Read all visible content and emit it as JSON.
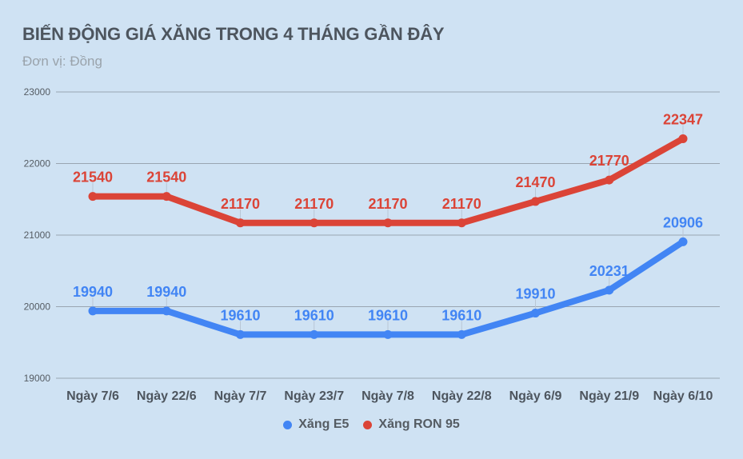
{
  "header": {
    "title": "BIẾN ĐỘNG GIÁ XĂNG TRONG 4 THÁNG GẦN ĐÂY",
    "subtitle": "Đơn vị: Đồng"
  },
  "legend": [
    {
      "label": "Xăng E5",
      "color": "#4285f4",
      "icon": "circle-dot"
    },
    {
      "label": "Xăng RON 95",
      "color": "#db4437",
      "icon": "circle-dot"
    }
  ],
  "chart_data": {
    "type": "line",
    "title": "BIẾN ĐỘNG GIÁ XĂNG TRONG 4 THÁNG GẦN ĐÂY",
    "subtitle": "Đơn vị: Đồng",
    "xlabel": "",
    "ylabel": "",
    "categories": [
      "Ngày 7/6",
      "Ngày 22/6",
      "Ngày 7/7",
      "Ngày 23/7",
      "Ngày 7/8",
      "Ngày 22/8",
      "Ngày 6/9",
      "Ngày 21/9",
      "Ngày 6/10"
    ],
    "series": [
      {
        "name": "Xăng E5",
        "color": "#4285f4",
        "values": [
          19940,
          19940,
          19610,
          19610,
          19610,
          19610,
          19910,
          20231,
          20906
        ]
      },
      {
        "name": "Xăng RON 95",
        "color": "#db4437",
        "values": [
          21540,
          21540,
          21170,
          21170,
          21170,
          21170,
          21470,
          21770,
          22347
        ]
      }
    ],
    "yticks": [
      19000,
      20000,
      21000,
      22000,
      23000
    ],
    "ylim": [
      19000,
      23000
    ],
    "grid": true,
    "data_labels": true,
    "legend_position": "bottom"
  }
}
